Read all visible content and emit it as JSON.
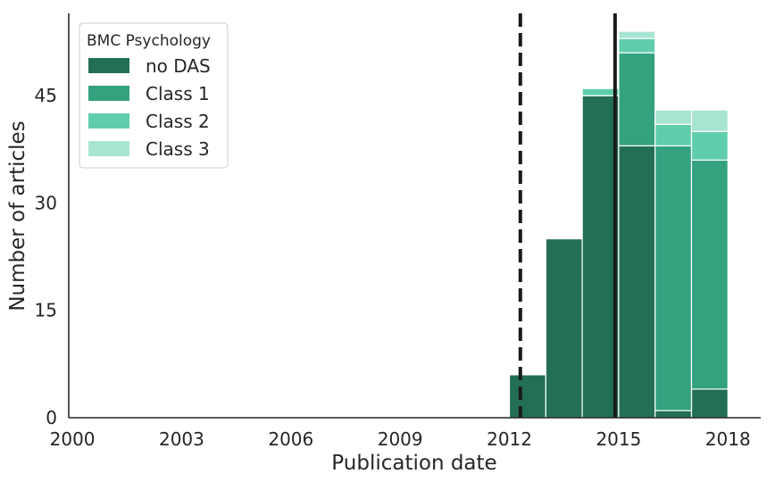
{
  "chart_data": {
    "type": "bar",
    "stacked": true,
    "xlabel": "Publication date",
    "ylabel": "Number of articles",
    "x_ticks": [
      2000,
      2003,
      2006,
      2009,
      2012,
      2015,
      2018
    ],
    "y_ticks": [
      0,
      15,
      30,
      45
    ],
    "xlim": [
      1999.9,
      2018.9
    ],
    "ylim": [
      0,
      56.5
    ],
    "grid": false,
    "bin_edges": [
      2012.0,
      2013.0,
      2014.0,
      2015.0,
      2016.0,
      2017.0,
      2018.0
    ],
    "series": [
      {
        "name": "no DAS",
        "color": "#226e56",
        "values": [
          6,
          25,
          45,
          38,
          1,
          4
        ]
      },
      {
        "name": "Class 1",
        "color": "#34a17f",
        "values": [
          0,
          0,
          0,
          13,
          37,
          32
        ]
      },
      {
        "name": "Class 2",
        "color": "#5fcdab",
        "values": [
          0,
          0,
          1,
          2,
          3,
          4
        ]
      },
      {
        "name": "Class 3",
        "color": "#a7e4d2",
        "values": [
          0,
          0,
          0,
          1,
          2,
          3
        ]
      }
    ],
    "reference_lines": [
      {
        "x": 2012.3,
        "style": "dashed",
        "color": "#1a1a1a"
      },
      {
        "x": 2014.9,
        "style": "solid",
        "color": "#1a1a1a"
      }
    ],
    "legend": {
      "title": "BMC Psychology",
      "position": "top-left"
    }
  }
}
